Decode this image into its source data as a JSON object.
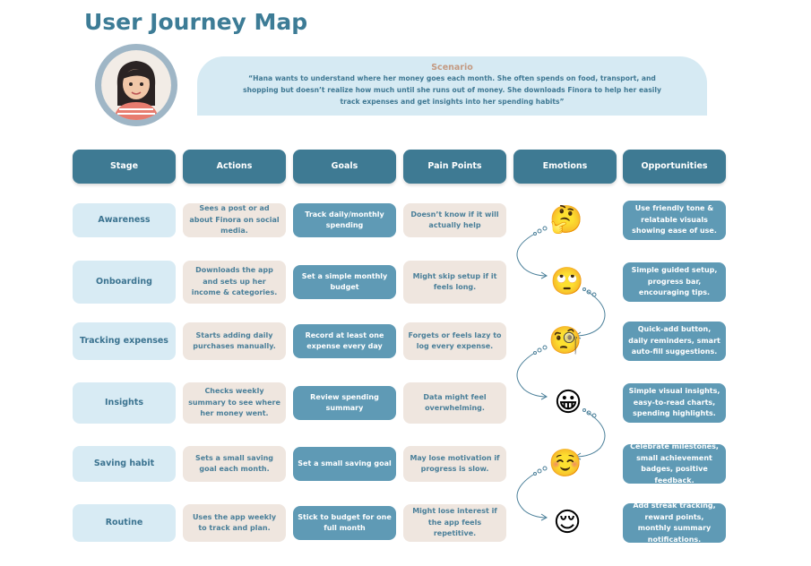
{
  "title": "User Journey Map",
  "scenario": {
    "heading": "Scenario",
    "text": "“Hana wants to understand where her money goes each month. She often spends on food, transport, and shopping but doesn’t realize how much until she runs out of money. She downloads Finora to help her easily track expenses and get insights into her spending habits”"
  },
  "headers": [
    "Stage",
    "Actions",
    "Goals",
    "Pain Points",
    "Emotions",
    "Opportunities"
  ],
  "rows": [
    {
      "stage": "Awareness",
      "action": "Sees a post or ad about Finora on social media.",
      "goal": "Track daily/monthly spending",
      "pain": "Doesn’t know if it will actually help",
      "emotion": "🤔",
      "emotion_icon": "thinking-face-icon",
      "opportunity": "Use friendly tone & relatable visuals showing ease of use."
    },
    {
      "stage": "Onboarding",
      "action": "Downloads the app and sets up her income & categories.",
      "goal": "Set a simple monthly budget",
      "pain": "Might skip setup if it feels long.",
      "emotion": "🙄",
      "emotion_icon": "eye-roll-face-icon",
      "opportunity": "Simple guided setup, progress bar, encouraging tips."
    },
    {
      "stage": "Tracking expenses",
      "action": "Starts adding daily purchases manually.",
      "goal": "Record at least one expense every day",
      "pain": "Forgets or feels lazy to log every expense.",
      "emotion": "🧐",
      "emotion_icon": "monocle-face-icon",
      "opportunity": "Quick-add button, daily reminders, smart auto-fill suggestions."
    },
    {
      "stage": "Insights",
      "action": "Checks weekly summary to see where her money went.",
      "goal": "Review spending summary",
      "pain": "Data might feel overwhelming.",
      "emotion": "😀",
      "emotion_icon": "grinning-face-icon",
      "opportunity": "Simple visual insights, easy-to-read charts, spending highlights."
    },
    {
      "stage": "Saving habit",
      "action": "Sets a small saving goal each month.",
      "goal": "Set a small saving goal",
      "pain": "May lose motivation if progress is slow.",
      "emotion": "☺️",
      "emotion_icon": "smiling-blush-face-icon",
      "opportunity": "Celebrate milestones, small achievement badges, positive feedback."
    },
    {
      "stage": "Routine",
      "action": "Uses the app weekly to track and plan.",
      "goal": "Stick to budget for one full month",
      "pain": "Might lose interest if the app feels repetitive.",
      "emotion": "😌",
      "emotion_icon": "relieved-face-icon",
      "opportunity": "Add streak tracking, reward points, monthly summary notifications."
    }
  ],
  "colors": {
    "header": "#3e7a93",
    "stage": "#d8ebf4",
    "action": "#efe6df",
    "goal": "#5f9ab5",
    "title": "#3d7c96"
  }
}
